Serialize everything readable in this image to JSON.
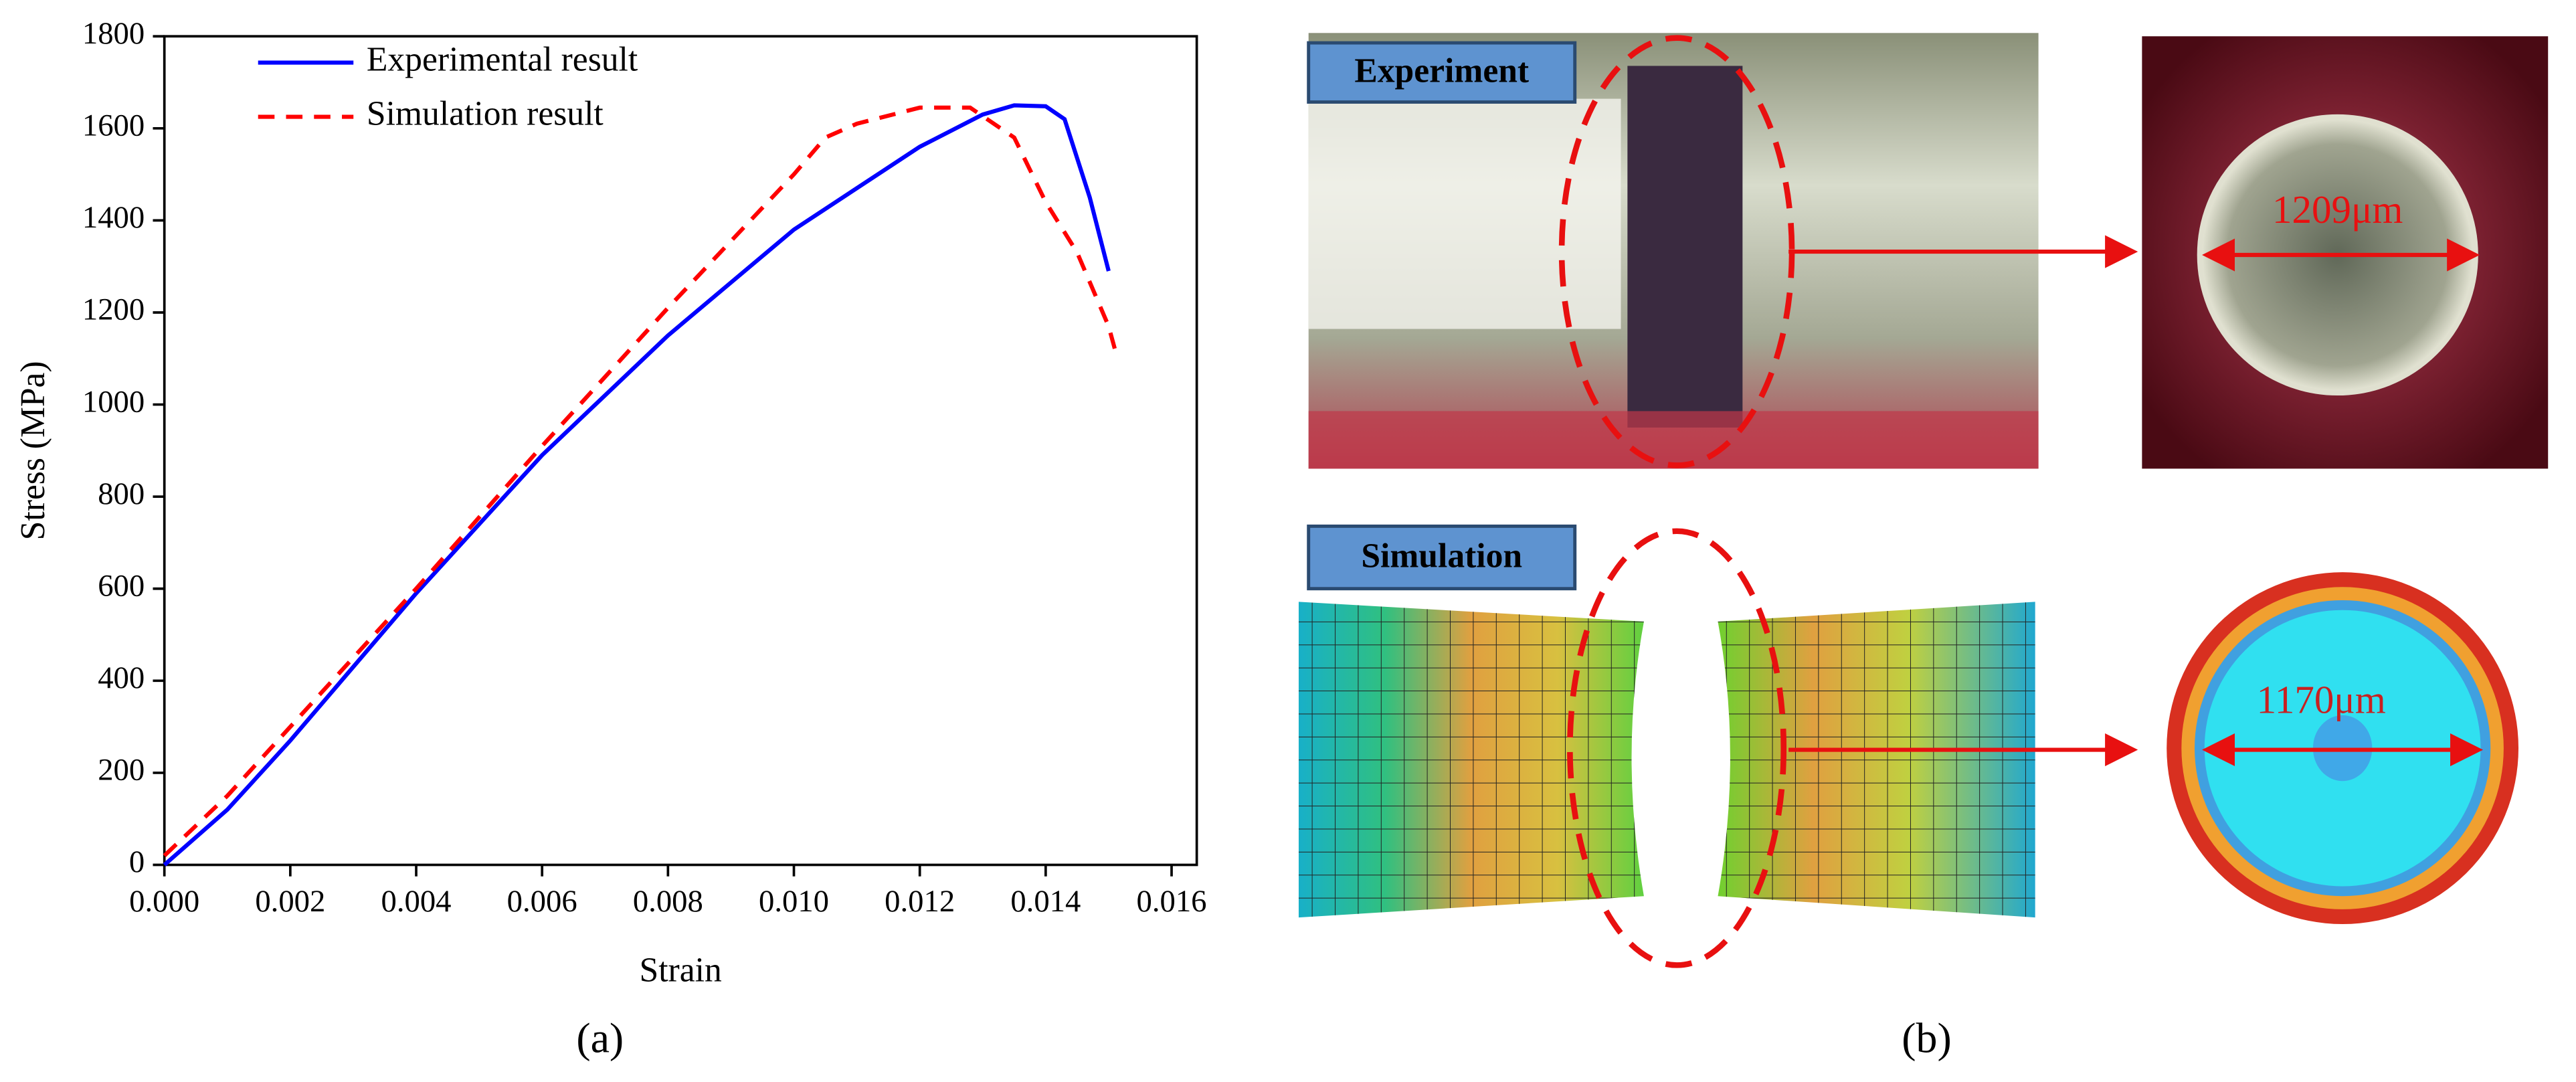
{
  "chart_data": {
    "type": "line",
    "x_label": "Strain",
    "y_label": "Stress (MPa)",
    "xlim": [
      0,
      0.0164
    ],
    "ylim": [
      0,
      1800
    ],
    "xticks": [
      {
        "value": 0,
        "label": "0.000"
      },
      {
        "value": 0.002,
        "label": "0.002"
      },
      {
        "value": 0.004,
        "label": "0.004"
      },
      {
        "value": 0.006,
        "label": "0.006"
      },
      {
        "value": 0.008,
        "label": "0.008"
      },
      {
        "value": 0.01,
        "label": "0.010"
      },
      {
        "value": 0.012,
        "label": "0.012"
      },
      {
        "value": 0.014,
        "label": "0.014"
      },
      {
        "value": 0.016,
        "label": "0.016"
      }
    ],
    "yticks": [
      0,
      200,
      400,
      600,
      800,
      1000,
      1200,
      1400,
      1600,
      1800
    ],
    "legend": "upper left",
    "series": [
      {
        "name": "Experimental result",
        "color": "#0000ff",
        "dash": "solid",
        "x": [
          0,
          0.001,
          0.002,
          0.004,
          0.006,
          0.008,
          0.01,
          0.012,
          0.013,
          0.0135,
          0.014,
          0.0143,
          0.0147,
          0.015
        ],
        "values": [
          0,
          120,
          270,
          590,
          890,
          1150,
          1380,
          1560,
          1630,
          1650,
          1648,
          1620,
          1450,
          1290
        ]
      },
      {
        "name": "Simulation result",
        "color": "#ff0000",
        "dash": "dashed",
        "x": [
          0,
          0.001,
          0.002,
          0.004,
          0.006,
          0.008,
          0.01,
          0.0105,
          0.011,
          0.012,
          0.0128,
          0.0135,
          0.014,
          0.0145,
          0.015,
          0.0151
        ],
        "values": [
          20,
          150,
          300,
          600,
          910,
          1210,
          1500,
          1580,
          1610,
          1645,
          1645,
          1580,
          1440,
          1330,
          1170,
          1120
        ]
      }
    ]
  },
  "panel_b": {
    "experiment_label": "Experiment",
    "simulation_label": "Simulation",
    "experiment_diameter": "1209μm",
    "simulation_diameter": "1170μm"
  },
  "captions": {
    "a": "(a)",
    "b": "(b)"
  }
}
